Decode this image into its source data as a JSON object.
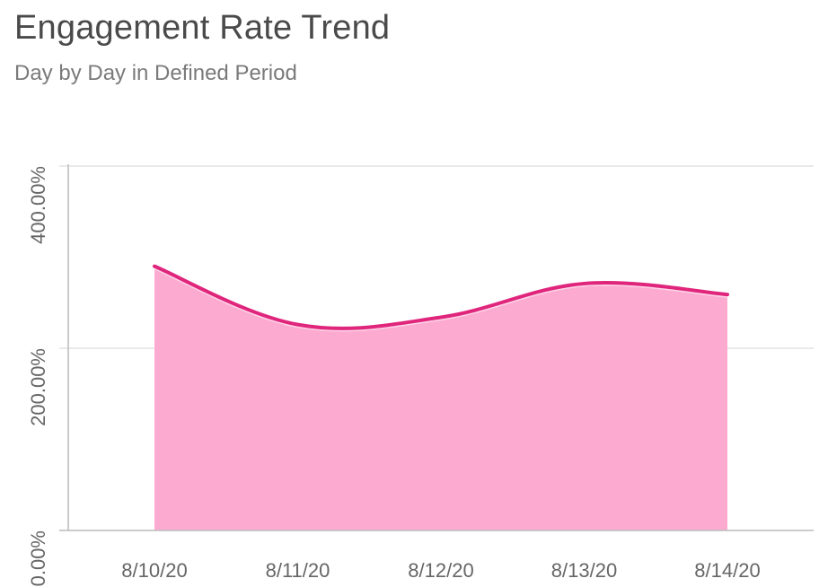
{
  "title": "Engagement Rate Trend",
  "subtitle": "Day by Day in Defined Period",
  "colors": {
    "line": "#e0267c",
    "area": "#fdaad1",
    "grid": "#e4e4e4",
    "axis": "#bbbbbb",
    "text": "#666666"
  },
  "chart_data": {
    "type": "area",
    "title": "Engagement Rate Trend",
    "subtitle": "Day by Day in Defined Period",
    "categories": [
      "8/10/20",
      "8/11/20",
      "8/12/20",
      "8/13/20",
      "8/14/20"
    ],
    "series": [
      {
        "values": [
          290,
          226,
          234,
          271,
          259
        ]
      }
    ],
    "yticks": [
      0,
      200,
      400
    ],
    "ytick_labels": [
      "0.00%",
      "200.00%",
      "400.00%"
    ],
    "ylim": [
      0,
      400
    ],
    "xlabel": "",
    "ylabel": "",
    "grid": true,
    "legend": "none"
  }
}
